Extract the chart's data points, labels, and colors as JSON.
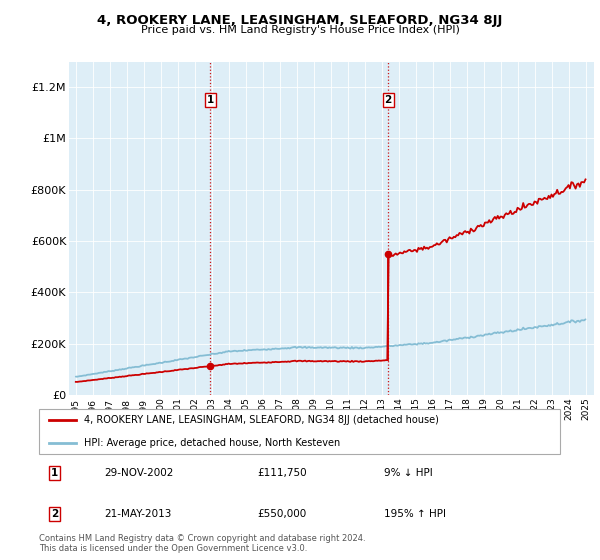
{
  "title": "4, ROOKERY LANE, LEASINGHAM, SLEAFORD, NG34 8JJ",
  "subtitle": "Price paid vs. HM Land Registry's House Price Index (HPI)",
  "ylim": [
    0,
    1300000
  ],
  "yticks": [
    0,
    200000,
    400000,
    600000,
    800000,
    1000000,
    1200000
  ],
  "ytick_labels": [
    "£0",
    "£200K",
    "£400K",
    "£600K",
    "£800K",
    "£1M",
    "£1.2M"
  ],
  "hpi_color": "#85bdd4",
  "price_color": "#cc0000",
  "sale1_year": 2002.91,
  "sale1_price": 111750,
  "sale2_year": 2013.39,
  "sale2_price": 550000,
  "vline_color": "#cc0000",
  "legend_label1": "4, ROOKERY LANE, LEASINGHAM, SLEAFORD, NG34 8JJ (detached house)",
  "legend_label2": "HPI: Average price, detached house, North Kesteven",
  "annotation1_date": "29-NOV-2002",
  "annotation1_price": "£111,750",
  "annotation1_pct": "9% ↓ HPI",
  "annotation2_date": "21-MAY-2013",
  "annotation2_price": "£550,000",
  "annotation2_pct": "195% ↑ HPI",
  "footer": "Contains HM Land Registry data © Crown copyright and database right 2024.\nThis data is licensed under the Open Government Licence v3.0.",
  "bg_color": "#deeef7"
}
